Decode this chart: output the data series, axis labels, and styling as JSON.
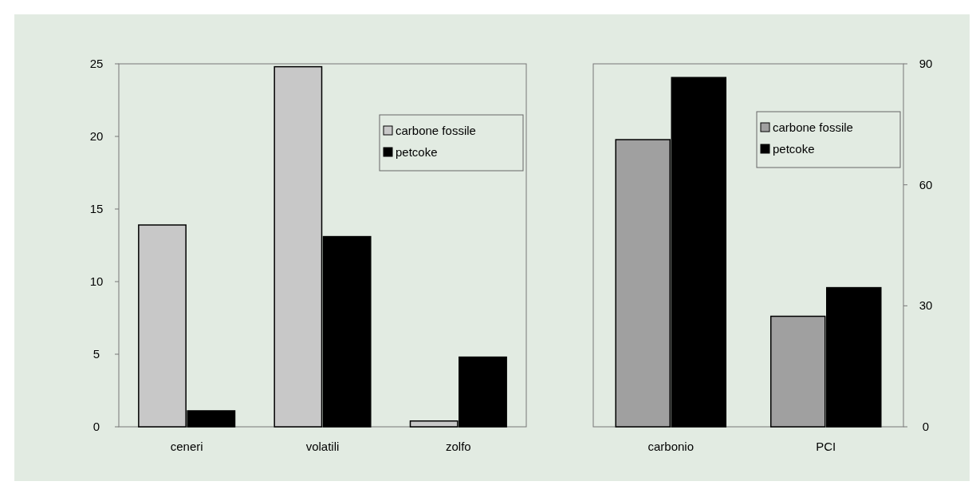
{
  "chart_data": [
    {
      "type": "bar",
      "categories": [
        "ceneri",
        "volatili",
        "zolfo"
      ],
      "ylim": [
        0,
        25
      ],
      "yticks": [
        0,
        5,
        10,
        15,
        20,
        25
      ],
      "legend": "top right",
      "series": [
        {
          "name": "carbone fossile",
          "color": "#c8c8c8",
          "values": [
            13.9,
            24.8,
            0.4
          ]
        },
        {
          "name": "petcoke",
          "color": "#000000",
          "values": [
            1.1,
            13.1,
            4.8
          ]
        }
      ]
    },
    {
      "type": "bar",
      "categories": [
        "carbonio",
        "PCI"
      ],
      "y2lim": [
        0,
        90
      ],
      "y2ticks": [
        0,
        30,
        60,
        90
      ],
      "legend": "top right",
      "series": [
        {
          "name": "carbone fossile",
          "color": "#a0a0a0",
          "values": [
            71.2,
            27.4
          ],
          "axis": "y2"
        },
        {
          "name": "petcoke",
          "color": "#000000",
          "values": [
            86.6,
            34.5
          ],
          "axis": "y2"
        }
      ]
    }
  ]
}
